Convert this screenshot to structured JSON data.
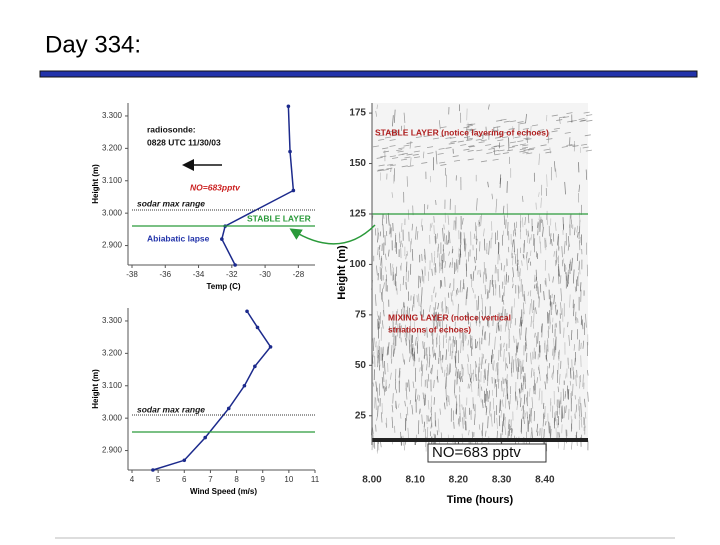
{
  "title": "Day 334:",
  "chart_data": [
    {
      "type": "line",
      "xlabel": "Temp (C)",
      "ylabel": "Height (m)",
      "x": [
        -28.6,
        -28.5,
        -28.3,
        -32.4,
        -32.6,
        -31.8
      ],
      "values": [
        3.33,
        3.19,
        3.07,
        2.96,
        2.92,
        2.84
      ],
      "color": "#1c2a8c",
      "xlim": [
        -38,
        -27
      ],
      "xticks": [
        -38,
        -36,
        -34,
        -32,
        -30,
        -28
      ],
      "ylim": [
        2.84,
        3.34
      ],
      "yticks": [
        {
          "value": 3.3,
          "label": "3.300"
        },
        {
          "value": 3.2,
          "label": "3.200"
        },
        {
          "value": 3.1,
          "label": "3.100"
        },
        {
          "value": 3.0,
          "label": "3.000"
        },
        {
          "value": 2.9,
          "label": "2.900"
        }
      ],
      "annotations": [
        "radiosonde:",
        "0828 UTC 11/30/03",
        "NO=683pptv",
        "sodar max range",
        "STABLE LAYER",
        "Abiabatic lapse"
      ]
    },
    {
      "type": "line",
      "xlabel": "Wind Speed (m/s)",
      "ylabel": "Height (m)",
      "x": [
        8.4,
        8.8,
        9.3,
        8.7,
        8.3,
        7.7,
        6.8,
        6.0,
        4.8
      ],
      "values": [
        3.33,
        3.28,
        3.22,
        3.16,
        3.1,
        3.03,
        2.94,
        2.87,
        2.84
      ],
      "color": "#1c2a8c",
      "xlim": [
        4,
        11
      ],
      "xticks": [
        4,
        5,
        6,
        7,
        8,
        9,
        10,
        11
      ],
      "ylim": [
        2.84,
        3.34
      ],
      "yticks": [
        {
          "value": 3.3,
          "label": "3.300"
        },
        {
          "value": 3.2,
          "label": "3.200"
        },
        {
          "value": 3.1,
          "label": "3.100"
        },
        {
          "value": 3.0,
          "label": "3.000"
        },
        {
          "value": 2.9,
          "label": "2.900"
        }
      ],
      "annotations": [
        "sodar max range"
      ]
    },
    {
      "type": "echogram",
      "xlabel": "Time (hours)",
      "ylabel": "Height (m)",
      "xlim": [
        8.0,
        8.5
      ],
      "xticks": [
        {
          "value": 8.0,
          "label": "8.00"
        },
        {
          "value": 8.1,
          "label": "8.10"
        },
        {
          "value": 8.2,
          "label": "8.20"
        },
        {
          "value": 8.3,
          "label": "8.30"
        },
        {
          "value": 8.4,
          "label": "8.40"
        }
      ],
      "ylim": [
        12,
        180
      ],
      "yticks": [
        25,
        50,
        75,
        100,
        125,
        150,
        175
      ],
      "hline": 125,
      "annotations": [
        "STABLE LAYER (notice layering of echoes)",
        "MIXING LAYER (notice vertical",
        "striations of echoes)",
        "NO=683 pptv"
      ]
    }
  ]
}
